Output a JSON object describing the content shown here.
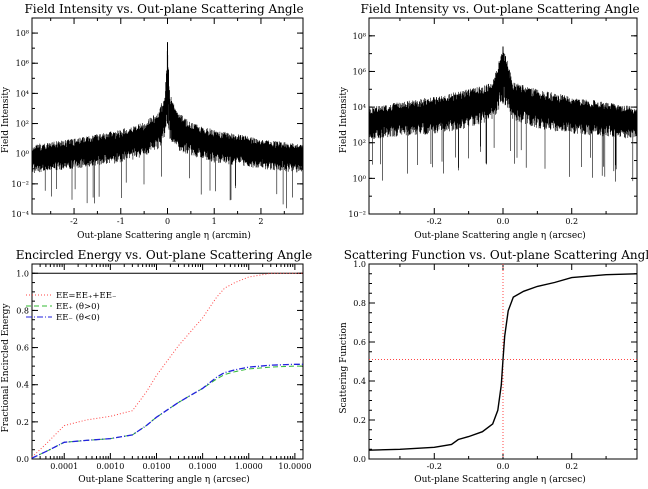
{
  "charts": {
    "top_left": {
      "title": "Field Intensity vs. Out-plane Scattering Angle",
      "xlabel": "Out-plane Scattering angle η (arcmin)",
      "ylabel": "Field Intensity",
      "x_ticks": [
        "-2",
        "-1",
        "0",
        "1",
        "2"
      ],
      "y_ticks": [
        "10⁻⁴",
        "10⁻²",
        "10⁰",
        "10²",
        "10⁴",
        "10⁶",
        "10⁸"
      ]
    },
    "top_right": {
      "title": "Field Intensity vs. Out-plane Scattering Angle",
      "xlabel": "Out-plane Scattering angle η (arcsec)",
      "ylabel": "Field Intensity",
      "x_ticks": [
        "-0.2",
        "0.0",
        "0.2"
      ],
      "y_ticks": [
        "10⁻²",
        "10⁰",
        "10²",
        "10⁴",
        "10⁶",
        "10⁸"
      ]
    },
    "bottom_left": {
      "title": "Encircled Energy vs. Out-plane Scattering Angle",
      "xlabel": "Out-plane Scattering angle η (arcsec)",
      "ylabel": "Fractional Encircled Energy",
      "x_ticks": [
        "0.0001",
        "0.0010",
        "0.0100",
        "0.1000",
        "1.0000",
        "10.0000"
      ],
      "y_ticks": [
        "0.0",
        "0.2",
        "0.4",
        "0.6",
        "0.8",
        "1.0"
      ],
      "legend": [
        "EE=EE₊+EE₋",
        "EE₊ (θ>0)",
        "EE₋ (θ<0)"
      ]
    },
    "bottom_right": {
      "title": "Scattering Function vs. Out-plane Scattering Angle",
      "xlabel": "Out-plane Scattering angle η (arcsec)",
      "ylabel": "Scattering Function",
      "x_ticks": [
        "-0.2",
        "0.0",
        "0.2"
      ],
      "y_ticks": [
        "0.0",
        "0.2",
        "0.4",
        "0.6",
        "0.8",
        "1.0"
      ]
    }
  },
  "chart_data": [
    {
      "type": "line",
      "title": "Field Intensity vs. Out-plane Scattering Angle",
      "xlabel": "Out-plane Scattering angle η (arcmin)",
      "ylabel": "Field Intensity",
      "xlim": [
        -2.9,
        2.9
      ],
      "ylim_log10": [
        -4,
        9
      ],
      "yscale": "log",
      "color": "#000000",
      "envelope_log10": {
        "x": [
          -2.9,
          -2.0,
          -1.0,
          -0.5,
          -0.2,
          -0.05,
          0.0,
          0.05,
          0.2,
          0.5,
          1.0,
          2.0,
          2.9
        ],
        "upper": [
          0.6,
          1.0,
          1.6,
          2.1,
          2.8,
          4.0,
          7.4,
          4.0,
          2.8,
          2.1,
          1.6,
          1.0,
          0.6
        ],
        "lower": [
          -1.3,
          -1.0,
          -0.6,
          -0.2,
          0.3,
          1.0,
          2.0,
          1.0,
          0.3,
          -0.2,
          -0.6,
          -1.0,
          -1.3
        ]
      }
    },
    {
      "type": "line",
      "title": "Field Intensity vs. Out-plane Scattering Angle",
      "xlabel": "Out-plane Scattering angle η (arcsec)",
      "ylabel": "Field Intensity",
      "xlim": [
        -0.39,
        0.39
      ],
      "ylim_log10": [
        -2,
        9
      ],
      "yscale": "log",
      "color": "#000000",
      "envelope_log10": {
        "x": [
          -0.39,
          -0.2,
          -0.1,
          -0.03,
          0.0,
          0.03,
          0.1,
          0.2,
          0.39
        ],
        "upper": [
          4.0,
          4.6,
          5.0,
          5.4,
          7.4,
          5.4,
          5.0,
          4.6,
          4.0
        ],
        "lower": [
          2.2,
          2.5,
          2.8,
          3.3,
          4.2,
          3.3,
          2.8,
          2.5,
          2.2
        ]
      }
    },
    {
      "type": "line",
      "title": "Encircled Energy vs. Out-plane Scattering Angle",
      "xlabel": "Out-plane Scattering angle η (arcsec)",
      "ylabel": "Fractional Encircled Energy",
      "xscale": "log",
      "xlim": [
        2e-05,
        15
      ],
      "ylim": [
        0,
        1.05
      ],
      "hline": 1.0,
      "series": [
        {
          "name": "EE=EE₊+EE₋",
          "color": "#ff4444",
          "dash": "dotted",
          "x": [
            2e-05,
            4e-05,
            0.0001,
            0.0003,
            0.001,
            0.003,
            0.006,
            0.01,
            0.03,
            0.1,
            0.2,
            0.3,
            0.5,
            1.0,
            3.0,
            10.0,
            15.0
          ],
          "y": [
            0.01,
            0.08,
            0.18,
            0.21,
            0.23,
            0.26,
            0.36,
            0.45,
            0.61,
            0.76,
            0.87,
            0.92,
            0.95,
            0.98,
            1.0,
            1.0,
            1.0
          ]
        },
        {
          "name": "EE₊ (θ>0)",
          "color": "#33bb33",
          "dash": "dashed",
          "x": [
            2e-05,
            4e-05,
            0.0001,
            0.0003,
            0.001,
            0.003,
            0.006,
            0.01,
            0.03,
            0.1,
            0.2,
            0.3,
            0.5,
            1.0,
            3.0,
            10.0,
            15.0
          ],
          "y": [
            0.005,
            0.04,
            0.09,
            0.1,
            0.11,
            0.13,
            0.18,
            0.225,
            0.305,
            0.38,
            0.43,
            0.455,
            0.47,
            0.485,
            0.495,
            0.5,
            0.5
          ]
        },
        {
          "name": "EE₋ (θ<0)",
          "color": "#2222dd",
          "dash": "dashdot",
          "x": [
            2e-05,
            4e-05,
            0.0001,
            0.0003,
            0.001,
            0.003,
            0.006,
            0.01,
            0.03,
            0.1,
            0.2,
            0.3,
            0.5,
            1.0,
            3.0,
            10.0,
            15.0
          ],
          "y": [
            0.005,
            0.04,
            0.09,
            0.1,
            0.11,
            0.13,
            0.18,
            0.225,
            0.305,
            0.38,
            0.44,
            0.465,
            0.48,
            0.495,
            0.505,
            0.51,
            0.51
          ]
        }
      ]
    },
    {
      "type": "line",
      "title": "Scattering Function vs. Out-plane Scattering Angle",
      "xlabel": "Out-plane Scattering angle η (arcsec)",
      "ylabel": "Scattering Function",
      "xlim": [
        -0.39,
        0.39
      ],
      "ylim": [
        0,
        1.0
      ],
      "reference_lines": {
        "x": 0.0,
        "y": 0.51,
        "style": "dotted",
        "color": "#ff4444"
      },
      "series": [
        {
          "color": "#000000",
          "x": [
            -0.39,
            -0.3,
            -0.2,
            -0.15,
            -0.13,
            -0.1,
            -0.06,
            -0.03,
            -0.015,
            -0.005,
            0.0,
            0.005,
            0.015,
            0.03,
            0.06,
            0.1,
            0.15,
            0.2,
            0.3,
            0.39
          ],
          "y": [
            0.045,
            0.05,
            0.06,
            0.075,
            0.1,
            0.115,
            0.14,
            0.18,
            0.25,
            0.38,
            0.51,
            0.63,
            0.76,
            0.83,
            0.86,
            0.885,
            0.905,
            0.93,
            0.945,
            0.95
          ]
        }
      ]
    }
  ]
}
